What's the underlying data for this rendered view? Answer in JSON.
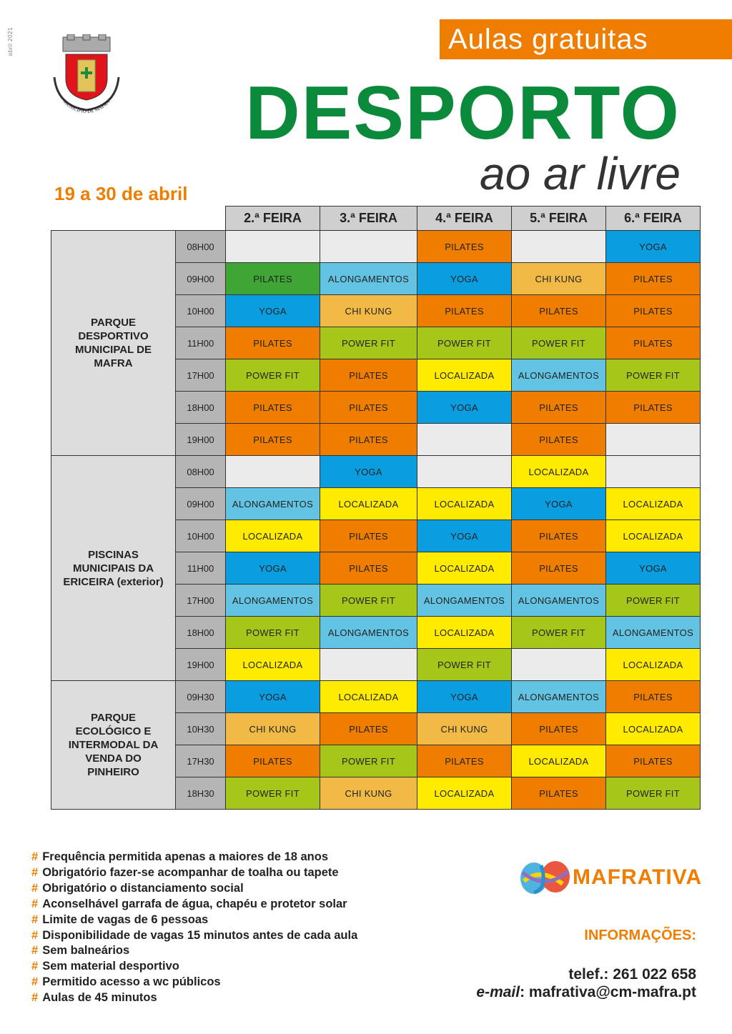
{
  "side_date": "abril 2021",
  "crest_text": "MUNICÍPIO DE MAFRA",
  "tag": "Aulas gratuitas",
  "title": "DESPORTO",
  "subtitle": "ao ar livre",
  "dates": "19 a 30 de abril",
  "days": [
    "2.ª FEIRA",
    "3.ª FEIRA",
    "4.ª FEIRA",
    "5.ª FEIRA",
    "6.ª FEIRA"
  ],
  "activity_colors": {
    "PILATES": "#ef7d00",
    "YOGA": "#0a9ee0",
    "ALONGAMENTOS": "#63c3e2",
    "CHI KUNG": "#f0ba45",
    "POWER FIT": "#a5c71a",
    "LOCALIZADA": "#ffeb00",
    "": "#ebebeb"
  },
  "locations": [
    {
      "name": "PARQUE DESPORTIVO MUNICIPAL DE MAFRA",
      "rows": [
        {
          "time": "08H00",
          "cells": [
            "",
            "",
            "PILATES",
            "",
            "YOGA"
          ]
        },
        {
          "time": "09H00",
          "cells": [
            {
              "label": "PILATES",
              "color": "#3fa535"
            },
            "ALONGAMENTOS",
            "YOGA",
            "CHI KUNG",
            "PILATES"
          ]
        },
        {
          "time": "10H00",
          "cells": [
            "YOGA",
            "CHI KUNG",
            "PILATES",
            "PILATES",
            "PILATES"
          ]
        },
        {
          "time": "11H00",
          "cells": [
            "PILATES",
            "POWER FIT",
            "POWER FIT",
            "POWER FIT",
            "PILATES"
          ]
        },
        {
          "time": "17H00",
          "cells": [
            "POWER FIT",
            "PILATES",
            "LOCALIZADA",
            "ALONGAMENTOS",
            "POWER FIT"
          ]
        },
        {
          "time": "18H00",
          "cells": [
            "PILATES",
            "PILATES",
            "YOGA",
            "PILATES",
            "PILATES"
          ]
        },
        {
          "time": "19H00",
          "cells": [
            "PILATES",
            "PILATES",
            "",
            "PILATES",
            ""
          ]
        }
      ]
    },
    {
      "name": "PISCINAS MUNICIPAIS DA ERICEIRA (exterior)",
      "rows": [
        {
          "time": "08H00",
          "cells": [
            "",
            "YOGA",
            "",
            "LOCALIZADA",
            ""
          ]
        },
        {
          "time": "09H00",
          "cells": [
            "ALONGAMENTOS",
            "LOCALIZADA",
            "LOCALIZADA",
            "YOGA",
            "LOCALIZADA"
          ]
        },
        {
          "time": "10H00",
          "cells": [
            "LOCALIZADA",
            "PILATES",
            "YOGA",
            "PILATES",
            "LOCALIZADA"
          ]
        },
        {
          "time": "11H00",
          "cells": [
            "YOGA",
            "PILATES",
            "LOCALIZADA",
            "PILATES",
            "YOGA"
          ]
        },
        {
          "time": "17H00",
          "cells": [
            "ALONGAMENTOS",
            "POWER FIT",
            "ALONGAMENTOS",
            "ALONGAMENTOS",
            "POWER FIT"
          ]
        },
        {
          "time": "18H00",
          "cells": [
            "POWER FIT",
            "ALONGAMENTOS",
            "LOCALIZADA",
            "POWER FIT",
            "ALONGAMENTOS"
          ]
        },
        {
          "time": "19H00",
          "cells": [
            "LOCALIZADA",
            "",
            "POWER FIT",
            "",
            "LOCALIZADA"
          ]
        }
      ]
    },
    {
      "name": "PARQUE ECOLÓGICO E INTERMODAL DA VENDA DO PINHEIRO",
      "rows": [
        {
          "time": "09H30",
          "cells": [
            "YOGA",
            "LOCALIZADA",
            "YOGA",
            "ALONGAMENTOS",
            "PILATES"
          ]
        },
        {
          "time": "10H30",
          "cells": [
            "CHI KUNG",
            "PILATES",
            "CHI KUNG",
            "PILATES",
            "LOCALIZADA"
          ]
        },
        {
          "time": "17H30",
          "cells": [
            "PILATES",
            "POWER FIT",
            "PILATES",
            "LOCALIZADA",
            "PILATES"
          ]
        },
        {
          "time": "18H30",
          "cells": [
            "POWER FIT",
            "CHI KUNG",
            "LOCALIZADA",
            "PILATES",
            "POWER FIT"
          ]
        }
      ]
    }
  ],
  "notes": [
    "Frequência permitida apenas a maiores de 18 anos",
    "Obrigatório fazer-se acompanhar de toalha ou tapete",
    "Obrigatório o distanciamento social",
    "Aconselhável garrafa de água, chapéu e protetor solar",
    "Limite de vagas de 6 pessoas",
    "Disponibilidade de vagas 15 minutos antes de cada aula",
    "Sem balneários",
    "Sem material desportivo",
    "Permitido acesso a wc públicos",
    "Aulas de 45 minutos"
  ],
  "note_bullet": "#",
  "logo_text": "MAFRATIVA",
  "info": {
    "heading": "INFORMAÇÕES:",
    "phone": "telef.: 261 022 658",
    "email_label": "e-mail",
    "email": ": mafrativa@cm-mafra.pt"
  }
}
